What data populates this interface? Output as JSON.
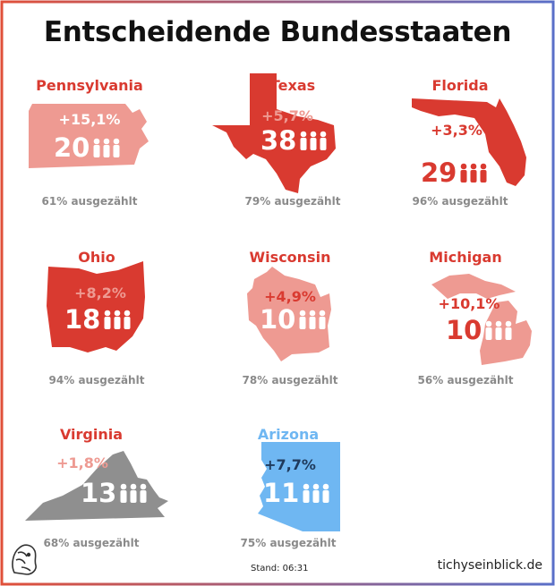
{
  "title": "Entscheidende Bundesstaaten",
  "colors": {
    "red_dark": "#d93a30",
    "red_light": "#ee9a92",
    "gray": "#8f8f8f",
    "blue": "#6fb7f2",
    "blue_text": "#2b7ed8",
    "dark_text": "#1f3a5c"
  },
  "states": [
    {
      "name": "Pennsylvania",
      "change": "+15,1%",
      "votes": "20",
      "counted": "61% ausgezählt"
    },
    {
      "name": "Texas",
      "change": "+5,7%",
      "votes": "38",
      "counted": "79% ausgezählt"
    },
    {
      "name": "Florida",
      "change": "+3,3%",
      "votes": "29",
      "counted": "96% ausgezählt"
    },
    {
      "name": "Ohio",
      "change": "+8,2%",
      "votes": "18",
      "counted": "94% ausgezählt"
    },
    {
      "name": "Wisconsin",
      "change": "+4,9%",
      "votes": "10",
      "counted": "78% ausgezählt"
    },
    {
      "name": "Michigan",
      "change": "+10,1%",
      "votes": "10",
      "counted": "56% ausgezählt"
    },
    {
      "name": "Virginia",
      "change": "+1,8%",
      "votes": "13",
      "counted": "68% ausgezählt"
    },
    {
      "name": "Arizona",
      "change": "+7,7%",
      "votes": "11",
      "counted": "75% ausgezählt"
    }
  ],
  "footer": {
    "stand": "Stand: 06:31",
    "site": "tichyseinblick.de"
  }
}
